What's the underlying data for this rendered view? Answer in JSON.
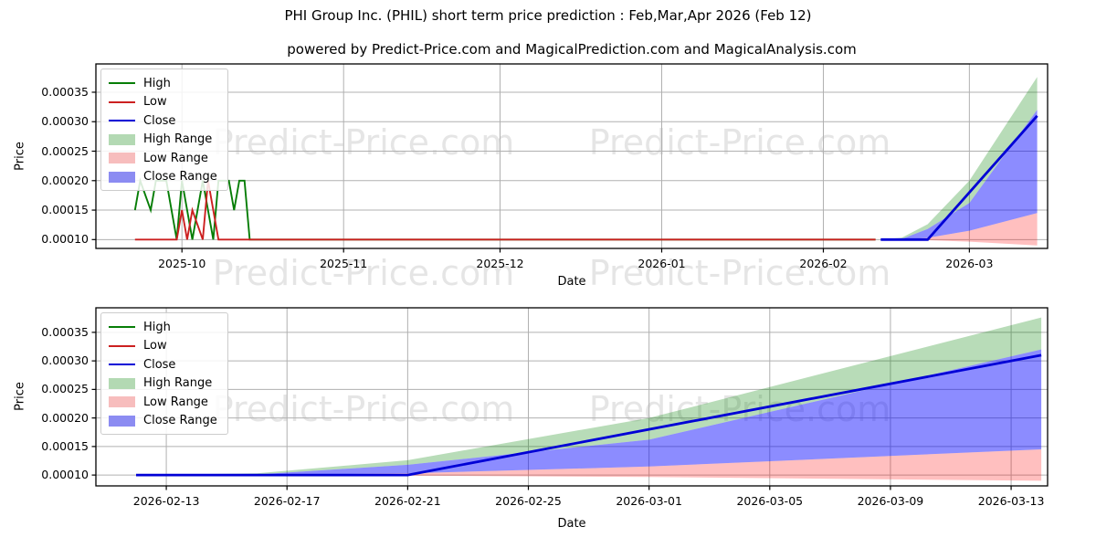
{
  "header": {
    "title": "PHI Group Inc. (PHIL) short term price prediction : Feb,Mar,Apr 2026 (Feb 12)",
    "subtitle": "powered by Predict-Price.com and MagicalPrediction.com and MagicalAnalysis.com"
  },
  "watermark": {
    "text": "Predict-Price.com"
  },
  "colors": {
    "high_line": "#067d06",
    "low_line": "#cc2020",
    "close_line": "#0000d6",
    "high_range_fill": "rgba(0,128,0,0.28)",
    "low_range_fill": "rgba(255,0,0,0.25)",
    "close_range_fill": "rgba(0,0,255,0.45)",
    "high_range_swatch": "#b3d9b3",
    "low_range_swatch": "#f7bdbd",
    "close_range_swatch": "#8c8cf2",
    "grid": "#b0b0b0",
    "spine": "#000000"
  },
  "legend": {
    "items": [
      {
        "label": "High",
        "swatch": "line",
        "color": "#067d06"
      },
      {
        "label": "Low",
        "swatch": "line",
        "color": "#cc2020"
      },
      {
        "label": "Close",
        "swatch": "line",
        "color": "#0000d6"
      },
      {
        "label": "High Range",
        "swatch": "patch",
        "color": "#b3d9b3"
      },
      {
        "label": "Low Range",
        "swatch": "patch",
        "color": "#f7bdbd"
      },
      {
        "label": "Close Range",
        "swatch": "patch",
        "color": "#8c8cf2"
      }
    ]
  },
  "chart_data": [
    {
      "id": "history-and-prediction",
      "type": "line",
      "xlabel": "Date",
      "ylabel": "Price",
      "grid": true,
      "legend_position": "upper left",
      "xlim": [
        "2025-09-14T12:00:00",
        "2026-03-16T00:00:00"
      ],
      "ylim": [
        8.5e-05,
        0.000398
      ],
      "ytick_values": [
        0.0001,
        0.00015,
        0.0002,
        0.00025,
        0.0003,
        0.00035
      ],
      "ytick_labels": [
        "0.00010",
        "0.00015",
        "0.00020",
        "0.00025",
        "0.00030",
        "0.00035"
      ],
      "xtick_dates": [
        "2025-10-01",
        "2025-11-01",
        "2025-12-01",
        "2026-01-01",
        "2026-02-01",
        "2026-03-01"
      ],
      "xtick_labels": [
        "2025-10",
        "2025-11",
        "2025-12",
        "2026-01",
        "2026-02",
        "2026-03"
      ],
      "series": [
        {
          "name": "High",
          "color": "#067d06",
          "width": 1.9,
          "points": [
            [
              "2025-09-22",
              0.00015
            ],
            [
              "2025-09-23",
              0.0002
            ],
            [
              "2025-09-25",
              0.00015
            ],
            [
              "2025-09-26",
              0.0002
            ],
            [
              "2025-09-28",
              0.0002
            ],
            [
              "2025-09-30",
              0.0001
            ],
            [
              "2025-10-01",
              0.0002
            ],
            [
              "2025-10-03",
              0.0001
            ],
            [
              "2025-10-04",
              0.00015
            ],
            [
              "2025-10-05",
              0.0002
            ],
            [
              "2025-10-07",
              0.0001
            ],
            [
              "2025-10-08",
              0.0002
            ],
            [
              "2025-10-10",
              0.0002
            ],
            [
              "2025-10-11",
              0.00015
            ],
            [
              "2025-10-12",
              0.0002
            ],
            [
              "2025-10-13",
              0.0002
            ],
            [
              "2025-10-14",
              0.0001
            ],
            [
              "2026-02-11",
              0.0001
            ]
          ]
        },
        {
          "name": "Low",
          "color": "#cc2020",
          "width": 1.9,
          "points": [
            [
              "2025-09-22",
              0.0001
            ],
            [
              "2025-09-30",
              0.0001
            ],
            [
              "2025-10-01",
              0.00015
            ],
            [
              "2025-10-02",
              0.0001
            ],
            [
              "2025-10-03",
              0.00015
            ],
            [
              "2025-10-05",
              0.0001
            ],
            [
              "2025-10-06",
              0.0002
            ],
            [
              "2025-10-08",
              0.0001
            ],
            [
              "2026-02-11",
              0.0001
            ]
          ]
        },
        {
          "name": "Close",
          "color": "#0000d6",
          "width": 2.8,
          "points": [
            [
              "2026-02-12",
              0.0001
            ],
            [
              "2026-02-21",
              0.0001
            ],
            [
              "2026-03-14",
              0.00031
            ]
          ]
        }
      ],
      "bands": [
        {
          "name": "High Range",
          "fill": "rgba(0,128,0,0.28)",
          "points": [
            [
              "2026-02-12",
              0.0001,
              0.0001
            ],
            [
              "2026-02-16",
              0.000101,
              0.000103
            ],
            [
              "2026-02-21",
              0.000118,
              0.000126
            ],
            [
              "2026-03-01",
              0.000162,
              0.0002
            ],
            [
              "2026-03-14",
              0.00032,
              0.000376
            ]
          ]
        },
        {
          "name": "Low Range",
          "fill": "rgba(255,0,0,0.25)",
          "points": [
            [
              "2026-02-12",
              0.0001,
              0.0001
            ],
            [
              "2026-02-16",
              9.95e-05,
              0.0001
            ],
            [
              "2026-02-21",
              9.9e-05,
              0.000103
            ],
            [
              "2026-03-01",
              9.65e-05,
              0.000115
            ],
            [
              "2026-03-14",
              9e-05,
              0.000145
            ]
          ]
        },
        {
          "name": "Close Range",
          "fill": "rgba(0,0,255,0.45)",
          "points": [
            [
              "2026-02-12",
              0.0001,
              0.0001
            ],
            [
              "2026-02-16",
              0.0001,
              0.000101
            ],
            [
              "2026-02-21",
              0.000103,
              0.000118
            ],
            [
              "2026-03-01",
              0.000115,
              0.000162
            ],
            [
              "2026-03-14",
              0.000145,
              0.00032
            ]
          ]
        }
      ]
    },
    {
      "id": "prediction-zoom",
      "type": "line",
      "xlabel": "Date",
      "ylabel": "Price",
      "grid": true,
      "legend_position": "upper left",
      "xlim": [
        "2026-02-10T16:00:00",
        "2026-03-14T05:00:00"
      ],
      "ylim": [
        8.1e-05,
        0.000393
      ],
      "ytick_values": [
        0.0001,
        0.00015,
        0.0002,
        0.00025,
        0.0003,
        0.00035
      ],
      "ytick_labels": [
        "0.00010",
        "0.00015",
        "0.00020",
        "0.00025",
        "0.00030",
        "0.00035"
      ],
      "xtick_dates": [
        "2026-02-13",
        "2026-02-17",
        "2026-02-21",
        "2026-02-25",
        "2026-03-01",
        "2026-03-05",
        "2026-03-09",
        "2026-03-13"
      ],
      "xtick_labels": [
        "2026-02-13",
        "2026-02-17",
        "2026-02-21",
        "2026-02-25",
        "2026-03-01",
        "2026-03-05",
        "2026-03-09",
        "2026-03-13"
      ],
      "series": [
        {
          "name": "Close",
          "color": "#0000d6",
          "width": 2.8,
          "points": [
            [
              "2026-02-12",
              0.0001
            ],
            [
              "2026-02-21",
              0.0001
            ],
            [
              "2026-03-14",
              0.00031
            ]
          ]
        }
      ],
      "bands": [
        {
          "name": "High Range",
          "fill": "rgba(0,128,0,0.28)",
          "points": [
            [
              "2026-02-12",
              0.0001,
              0.0001
            ],
            [
              "2026-02-16",
              0.000101,
              0.000103
            ],
            [
              "2026-02-21",
              0.000118,
              0.000126
            ],
            [
              "2026-03-01",
              0.000162,
              0.0002
            ],
            [
              "2026-03-14",
              0.00032,
              0.000376
            ]
          ]
        },
        {
          "name": "Low Range",
          "fill": "rgba(255,0,0,0.25)",
          "points": [
            [
              "2026-02-12",
              0.0001,
              0.0001
            ],
            [
              "2026-02-16",
              9.95e-05,
              0.0001
            ],
            [
              "2026-02-21",
              9.9e-05,
              0.000103
            ],
            [
              "2026-03-01",
              9.65e-05,
              0.000115
            ],
            [
              "2026-03-14",
              9e-05,
              0.000145
            ]
          ]
        },
        {
          "name": "Close Range",
          "fill": "rgba(0,0,255,0.45)",
          "points": [
            [
              "2026-02-12",
              0.0001,
              0.0001
            ],
            [
              "2026-02-16",
              0.0001,
              0.000101
            ],
            [
              "2026-02-21",
              0.000103,
              0.000118
            ],
            [
              "2026-03-01",
              0.000115,
              0.000162
            ],
            [
              "2026-03-14",
              0.000145,
              0.00032
            ]
          ]
        }
      ]
    }
  ]
}
